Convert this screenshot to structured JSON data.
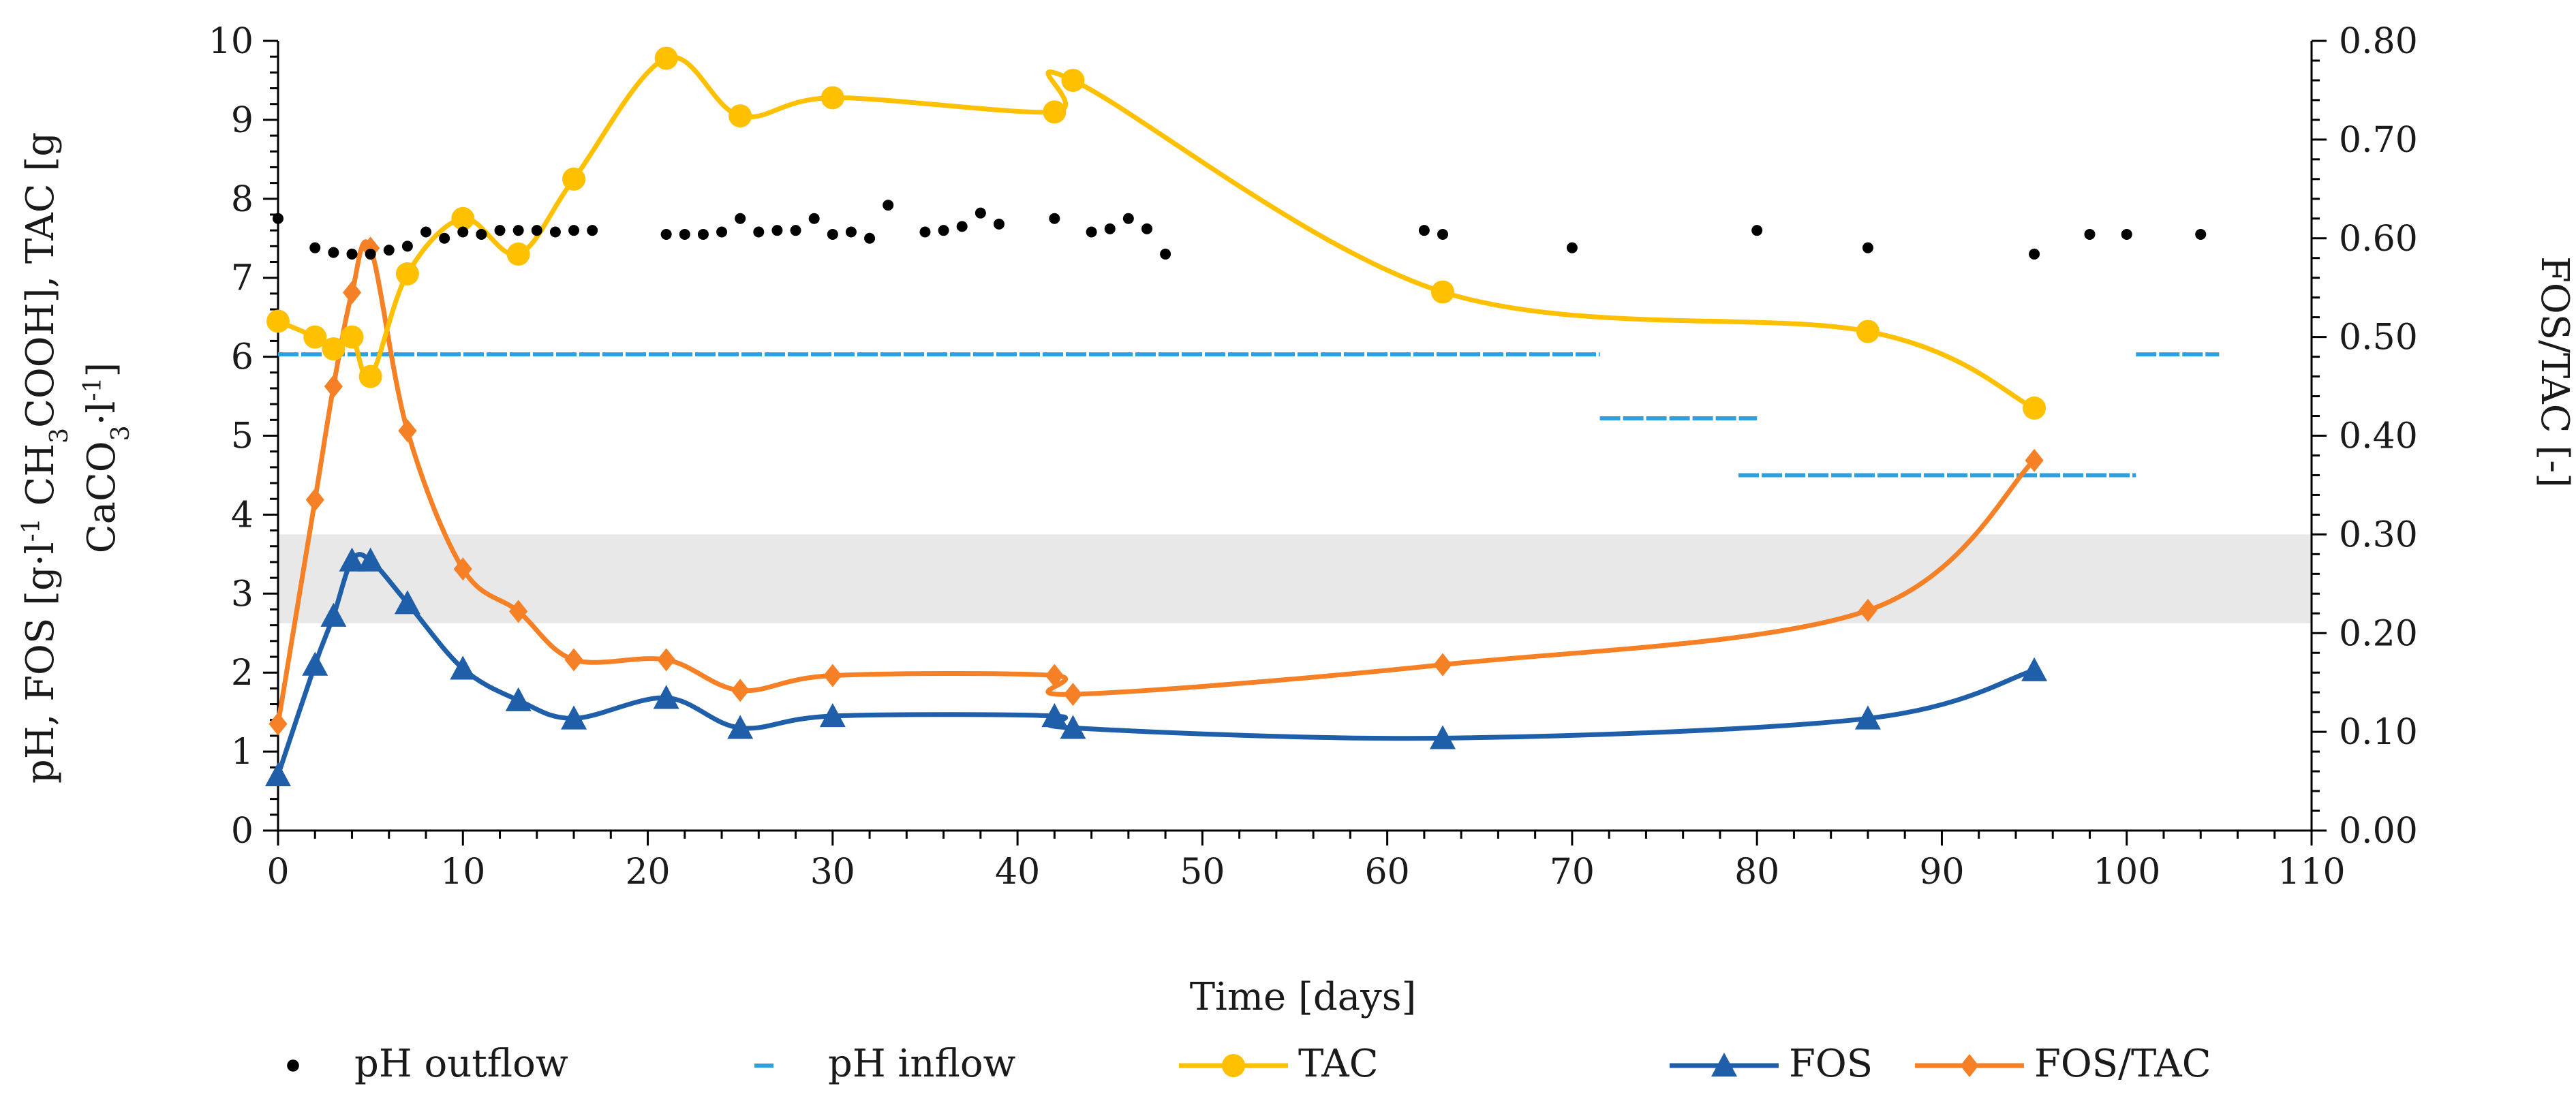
{
  "chart_data": {
    "type": "line",
    "title": "",
    "xlabel": "Time [days]",
    "ylabel_left": "pH, FOS [g·l⁻¹ CH₃COOH], TAC [g CaCO₃·l⁻¹]",
    "ylabel_left_lines": [
      [
        "pH, FOS [g",
        "·",
        "l",
        "-1",
        " CH",
        "3",
        "COOH], TAC [g"
      ],
      [
        "CaCO",
        "3",
        "·",
        "l",
        "-1",
        "]"
      ]
    ],
    "ylabel_right": "FOS/TAC [-]",
    "xlim": [
      0,
      110
    ],
    "ylim_left": [
      0,
      10
    ],
    "ylim_right": [
      0,
      0.8
    ],
    "x_ticks": [
      0,
      10,
      20,
      30,
      40,
      50,
      60,
      70,
      80,
      90,
      100,
      110
    ],
    "x_tick_labels": [
      "0",
      "10",
      "20",
      "30",
      "40",
      "50",
      "60",
      "70",
      "80",
      "90",
      "100",
      "110"
    ],
    "y_left_ticks": [
      0,
      1,
      2,
      3,
      4,
      5,
      6,
      7,
      8,
      9,
      10
    ],
    "y_left_tick_labels": [
      "0",
      "1",
      "2",
      "3",
      "4",
      "5",
      "6",
      "7",
      "8",
      "9",
      "10"
    ],
    "y_right_ticks": [
      0,
      0.1,
      0.2,
      0.3,
      0.4,
      0.5,
      0.6,
      0.7,
      0.8
    ],
    "y_right_tick_labels": [
      "0.00",
      "0.10",
      "0.20",
      "0.30",
      "0.40",
      "0.50",
      "0.60",
      "0.70",
      "0.80"
    ],
    "shaded_band": {
      "axis": "right",
      "from": 0.21,
      "to": 0.3,
      "color": "#e8e8e8"
    },
    "legend_position": "bottom",
    "series": [
      {
        "name": "pH outflow",
        "type": "scatter",
        "axis": "left",
        "color": "#000000",
        "x": [
          0,
          2,
          3,
          4,
          5,
          6,
          7,
          8,
          9,
          10,
          11,
          12,
          13,
          14,
          15,
          16,
          17,
          21,
          22,
          23,
          24,
          25,
          26,
          27,
          28,
          29,
          30,
          31,
          32,
          33,
          35,
          36,
          37,
          38,
          39,
          42,
          44,
          45,
          46,
          47,
          48,
          62,
          63,
          70,
          80,
          86,
          95,
          98,
          100,
          104
        ],
        "y": [
          7.75,
          7.38,
          7.32,
          7.3,
          7.3,
          7.35,
          7.4,
          7.58,
          7.5,
          7.58,
          7.55,
          7.6,
          7.6,
          7.6,
          7.58,
          7.6,
          7.6,
          7.55,
          7.55,
          7.55,
          7.58,
          7.75,
          7.58,
          7.6,
          7.6,
          7.75,
          7.55,
          7.58,
          7.5,
          7.92,
          7.58,
          7.6,
          7.65,
          7.82,
          7.68,
          7.75,
          7.58,
          7.62,
          7.75,
          7.62,
          7.3,
          7.6,
          7.55,
          7.38,
          7.6,
          7.38,
          7.3,
          7.55,
          7.55,
          7.55
        ]
      },
      {
        "name": "pH inflow",
        "type": "step-dash",
        "axis": "left",
        "color": "#2ea0e0",
        "segments": [
          {
            "from": 0,
            "to": 71.5,
            "y": 6.03
          },
          {
            "from": 71.5,
            "to": 80,
            "y": 5.22
          },
          {
            "from": 79,
            "to": 100.5,
            "y": 4.5
          },
          {
            "from": 100.5,
            "to": 105,
            "y": 6.03
          }
        ]
      },
      {
        "name": "TAC",
        "type": "line",
        "axis": "left",
        "color": "#ffc000",
        "x": [
          0,
          2,
          3,
          4,
          5,
          7,
          10,
          13,
          16,
          21,
          25,
          30,
          42,
          43,
          63,
          86,
          95
        ],
        "y": [
          6.45,
          6.25,
          6.1,
          6.25,
          5.75,
          7.05,
          7.75,
          7.3,
          8.25,
          9.78,
          9.05,
          9.28,
          9.1,
          9.5,
          6.82,
          6.32,
          5.35
        ]
      },
      {
        "name": "FOS",
        "type": "line",
        "axis": "left",
        "color": "#1f5ea8",
        "x": [
          0,
          2,
          3,
          4,
          5,
          7,
          10,
          13,
          16,
          21,
          25,
          30,
          42,
          43,
          63,
          86,
          95
        ],
        "y": [
          0.7,
          2.1,
          2.72,
          3.42,
          3.42,
          2.88,
          2.05,
          1.65,
          1.42,
          1.68,
          1.3,
          1.45,
          1.45,
          1.3,
          1.17,
          1.42,
          2.03
        ]
      },
      {
        "name": "FOS/TAC",
        "type": "line",
        "axis": "right",
        "color": "#f58025",
        "x": [
          0,
          2,
          3,
          4,
          5,
          7,
          10,
          13,
          16,
          21,
          25,
          30,
          42,
          43,
          63,
          86,
          95
        ],
        "y": [
          0.108,
          0.335,
          0.45,
          0.545,
          0.59,
          0.405,
          0.265,
          0.222,
          0.173,
          0.173,
          0.142,
          0.157,
          0.157,
          0.138,
          0.168,
          0.223,
          0.375
        ]
      }
    ],
    "legend": [
      {
        "name": "pH outflow",
        "marker": "dot",
        "color": "#000000"
      },
      {
        "name": "pH inflow",
        "marker": "dash",
        "color": "#2ea0e0"
      },
      {
        "name": "TAC",
        "marker": "circle-line",
        "color": "#ffc000"
      },
      {
        "name": "FOS",
        "marker": "triangle-line",
        "color": "#1f5ea8"
      },
      {
        "name": "FOS/TAC",
        "marker": "diamond-line",
        "color": "#f58025"
      }
    ]
  }
}
